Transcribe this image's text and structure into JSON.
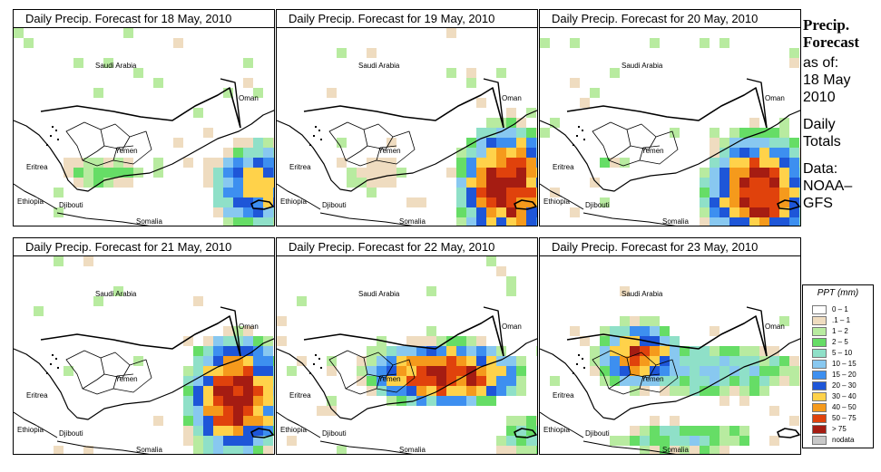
{
  "panels": [
    {
      "title": "Daily Precip. Forecast for  18 May, 2010"
    },
    {
      "title": "Daily Precip. Forecast for  19 May, 2010"
    },
    {
      "title": "Daily Precip. Forecast for  20 May, 2010"
    },
    {
      "title": "Daily Precip. Forecast for  21 May, 2010"
    },
    {
      "title": "Daily Precip. Forecast for  22 May, 2010"
    },
    {
      "title": "Daily Precip. Forecast for  23 May, 2010"
    }
  ],
  "labels": {
    "saudi": "Saudi Arabia",
    "oman": "Oman",
    "yemen": "Yemen",
    "eritrea": "Eritrea",
    "ethiopia": "Ethiopia",
    "djibouti": "Djibouti",
    "somalia": "Somalia"
  },
  "side": {
    "heading1": "Precip.",
    "heading2": "Forecast",
    "as_of": "as of:",
    "date1": "18 May",
    "date2": "2010",
    "daily1": "Daily",
    "daily2": "Totals",
    "data1": "Data:",
    "data2": "NOAA–",
    "data3": "GFS"
  },
  "legend": {
    "title": "PPT (mm)",
    "items": [
      {
        "label": "0 – 1",
        "color": "#ffffff"
      },
      {
        "label": ".1 – 1",
        "color": "#efdcc0"
      },
      {
        "label": "1 – 2",
        "color": "#b8eba0"
      },
      {
        "label": "2 – 5",
        "color": "#66dd66"
      },
      {
        "label": "5 – 10",
        "color": "#8fe0c8"
      },
      {
        "label": "10 – 15",
        "color": "#88c8f0"
      },
      {
        "label": "15 – 20",
        "color": "#3d8ff0"
      },
      {
        "label": "20 – 30",
        "color": "#1e56d8"
      },
      {
        "label": "30 – 40",
        "color": "#ffd24a"
      },
      {
        "label": "40 – 50",
        "color": "#f59a1c"
      },
      {
        "label": "50 – 75",
        "color": "#e0420c"
      },
      {
        "label": "> 75",
        "color": "#a51c12"
      },
      {
        "label": "nodata",
        "color": "#c8c8c8"
      }
    ]
  }
}
